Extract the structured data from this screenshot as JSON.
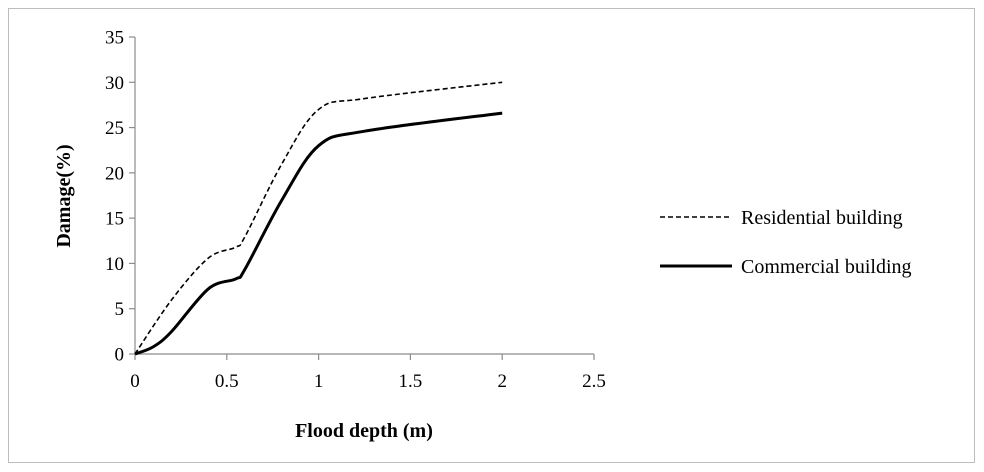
{
  "chart_data": {
    "type": "line",
    "title": "",
    "xlabel": "Flood depth (m)",
    "ylabel": "Damage(%)",
    "xlim": [
      0,
      2.5
    ],
    "ylim": [
      0,
      35
    ],
    "xticks": [
      "0",
      "0.5",
      "1",
      "1.5",
      "2",
      "2.5"
    ],
    "yticks": [
      "0",
      "5",
      "10",
      "15",
      "20",
      "25",
      "30",
      "35"
    ],
    "grid": false,
    "legend": "right",
    "series": [
      {
        "name": "Residential building",
        "style": "dashed",
        "color": "#000000",
        "points": [
          [
            0,
            0
          ],
          [
            0.2,
            6
          ],
          [
            0.4,
            10.6
          ],
          [
            0.55,
            11.8
          ],
          [
            0.6,
            13
          ],
          [
            0.8,
            21
          ],
          [
            1,
            27
          ],
          [
            1.25,
            28.2
          ],
          [
            2,
            30
          ]
        ]
      },
      {
        "name": "Commercial building",
        "style": "solid",
        "color": "#000000",
        "points": [
          [
            0,
            0
          ],
          [
            0.1,
            0.8
          ],
          [
            0.2,
            2.5
          ],
          [
            0.4,
            7.2
          ],
          [
            0.55,
            8.3
          ],
          [
            0.6,
            9.4
          ],
          [
            0.8,
            17
          ],
          [
            1,
            23
          ],
          [
            1.25,
            24.6
          ],
          [
            2,
            26.6
          ]
        ]
      }
    ]
  }
}
